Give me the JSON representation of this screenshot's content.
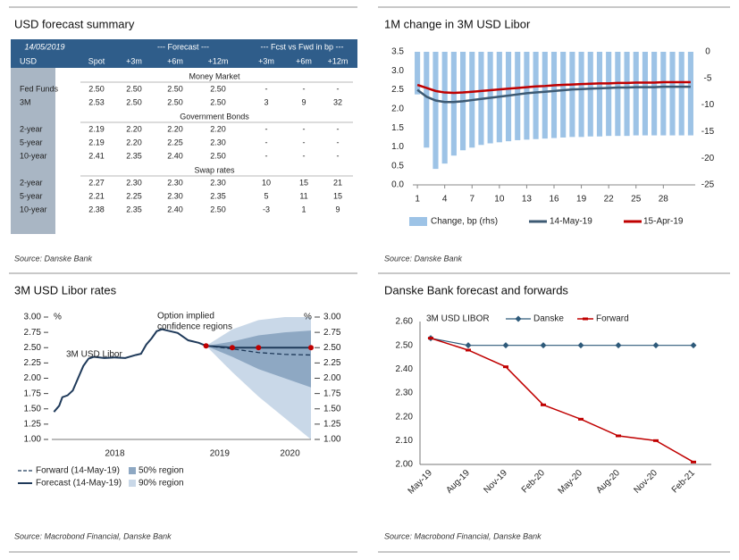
{
  "table": {
    "title": "USD forecast summary",
    "date": "14/05/2019",
    "group_headers": [
      "--- Forecast ---",
      "--- Fcst vs Fwd in bp ---"
    ],
    "columns": [
      "USD",
      "Spot",
      "+3m",
      "+6m",
      "+12m",
      "+3m",
      "+6m",
      "+12m"
    ],
    "sections": [
      {
        "name": "Money Market",
        "rows": [
          [
            "Fed Funds",
            "2.50",
            "2.50",
            "2.50",
            "2.50",
            "-",
            "-",
            "-"
          ],
          [
            "3M",
            "2.53",
            "2.50",
            "2.50",
            "2.50",
            "3",
            "9",
            "32"
          ]
        ]
      },
      {
        "name": "Government Bonds",
        "rows": [
          [
            "2-year",
            "2.19",
            "2.20",
            "2.20",
            "2.20",
            "-",
            "-",
            "-"
          ],
          [
            "5-year",
            "2.19",
            "2.20",
            "2.25",
            "2.30",
            "-",
            "-",
            "-"
          ],
          [
            "10-year",
            "2.41",
            "2.35",
            "2.40",
            "2.50",
            "-",
            "-",
            "-"
          ]
        ]
      },
      {
        "name": "Swap rates",
        "rows": [
          [
            "2-year",
            "2.27",
            "2.30",
            "2.30",
            "2.30",
            "10",
            "15",
            "21"
          ],
          [
            "5-year",
            "2.21",
            "2.25",
            "2.30",
            "2.35",
            "5",
            "11",
            "15"
          ],
          [
            "10-year",
            "2.38",
            "2.35",
            "2.40",
            "2.50",
            "-3",
            "1",
            "9"
          ]
        ]
      }
    ],
    "source": "Source: Danske Bank"
  },
  "chart_data": [
    {
      "type": "combo",
      "title": "1M change in 3M USD Libor",
      "source": "Source: Danske Bank",
      "x": [
        1,
        2,
        3,
        4,
        5,
        6,
        7,
        8,
        9,
        10,
        11,
        12,
        13,
        14,
        15,
        16,
        17,
        18,
        19,
        20,
        21,
        22,
        23,
        24,
        25,
        26,
        27,
        28,
        29,
        30,
        31
      ],
      "series": [
        {
          "name": "Change, bp (rhs)",
          "type": "bar",
          "axis": "y2",
          "color": "#9dc3e6",
          "values": [
            -8,
            -18,
            -22,
            -21,
            -19.5,
            -18.5,
            -18,
            -17.5,
            -17.2,
            -17,
            -16.8,
            -16.6,
            -16.5,
            -16.4,
            -16.3,
            -16.2,
            -16.1,
            -16,
            -16,
            -15.9,
            -15.9,
            -15.8,
            -15.8,
            -15.8,
            -15.7,
            -15.7,
            -15.7,
            -15.7,
            -15.7,
            -15.7,
            -15.7
          ]
        },
        {
          "name": "14-May-19",
          "type": "line",
          "color": "#3d5a73",
          "values": [
            2.5,
            2.32,
            2.22,
            2.18,
            2.18,
            2.2,
            2.23,
            2.26,
            2.29,
            2.32,
            2.35,
            2.38,
            2.41,
            2.43,
            2.45,
            2.47,
            2.49,
            2.51,
            2.52,
            2.53,
            2.54,
            2.55,
            2.56,
            2.56,
            2.57,
            2.57,
            2.57,
            2.58,
            2.58,
            2.58,
            2.58
          ]
        },
        {
          "name": "15-Apr-19",
          "type": "line",
          "color": "#c00000",
          "values": [
            2.63,
            2.55,
            2.47,
            2.43,
            2.42,
            2.43,
            2.45,
            2.47,
            2.49,
            2.51,
            2.53,
            2.55,
            2.57,
            2.59,
            2.6,
            2.62,
            2.63,
            2.64,
            2.65,
            2.66,
            2.67,
            2.67,
            2.68,
            2.68,
            2.69,
            2.69,
            2.69,
            2.7,
            2.7,
            2.7,
            2.7
          ]
        }
      ],
      "xlim": [
        0.5,
        31.5
      ],
      "xticks": [
        1,
        4,
        7,
        10,
        13,
        16,
        19,
        22,
        25,
        28
      ],
      "ylim": [
        0,
        3.5
      ],
      "yticks": [
        {
          "value": 0,
          "label": "0.0"
        },
        {
          "value": 0.5,
          "label": "0.5"
        },
        {
          "value": 1,
          "label": "1.0"
        },
        {
          "value": 1.5,
          "label": "1.5"
        },
        {
          "value": 2,
          "label": "2.0"
        },
        {
          "value": 2.5,
          "label": "2.5"
        },
        {
          "value": 3,
          "label": "3.0"
        },
        {
          "value": 3.5,
          "label": "3.5"
        }
      ],
      "y2lim": [
        -25,
        0
      ],
      "y2ticks": [
        0,
        -5,
        -10,
        -15,
        -20,
        -25
      ]
    },
    {
      "type": "fan",
      "title": "3M USD Libor rates",
      "source": "Source: Macrobond Financial, Danske Bank",
      "y_unit": "%",
      "annotations": [
        "3M USD Libor",
        "Option implied",
        "confidence regions"
      ],
      "bands": [
        {
          "name": "90% region",
          "color": "#c9d8e8",
          "x": [
            2019.37,
            2019.62,
            2019.87,
            2020.12,
            2020.37
          ],
          "lower": [
            2.53,
            2.1,
            1.7,
            1.35,
            1.0
          ],
          "upper": [
            2.53,
            2.8,
            2.95,
            3.0,
            3.0
          ]
        },
        {
          "name": "50% region",
          "color": "#8ea8c3",
          "x": [
            2019.37,
            2019.62,
            2019.87,
            2020.12,
            2020.37
          ],
          "lower": [
            2.53,
            2.35,
            2.15,
            2.0,
            1.85
          ],
          "upper": [
            2.53,
            2.6,
            2.7,
            2.75,
            2.78
          ]
        }
      ],
      "series": [
        {
          "name": "Forecast (14-May-19)",
          "color": "#1f3a5a",
          "dash": false,
          "x": [
            2017.92,
            2017.97,
            2018.0,
            2018.05,
            2018.1,
            2018.15,
            2018.2,
            2018.25,
            2018.3,
            2018.4,
            2018.5,
            2018.6,
            2018.7,
            2018.75,
            2018.8,
            2018.85,
            2018.9,
            2018.95,
            2019.0,
            2019.1,
            2019.2,
            2019.3,
            2019.37,
            2019.62,
            2019.87,
            2020.37
          ],
          "values": [
            1.45,
            1.55,
            1.69,
            1.72,
            1.8,
            2.0,
            2.2,
            2.32,
            2.35,
            2.33,
            2.34,
            2.33,
            2.38,
            2.4,
            2.55,
            2.65,
            2.77,
            2.8,
            2.78,
            2.74,
            2.62,
            2.58,
            2.53,
            2.5,
            2.5,
            2.5
          ]
        },
        {
          "name": "Forward (14-May-19)",
          "color": "#1f3a5a",
          "dash": true,
          "x": [
            2019.37,
            2019.62,
            2019.87,
            2020.12,
            2020.37
          ],
          "values": [
            2.53,
            2.48,
            2.42,
            2.39,
            2.38
          ]
        }
      ],
      "points": {
        "color": "#c00000",
        "x": [
          2019.37,
          2019.62,
          2019.87,
          2020.37
        ],
        "values": [
          2.53,
          2.5,
          2.5,
          2.5
        ]
      },
      "xlim": [
        2017.9,
        2020.37
      ],
      "xticks": [
        {
          "value": 2018.5,
          "label": "2018"
        },
        {
          "value": 2019.5,
          "label": "2019"
        },
        {
          "value": 2020.17,
          "label": "2020"
        }
      ],
      "ylim": [
        1,
        3
      ],
      "yticks": [
        {
          "value": 1,
          "label": "1.00"
        },
        {
          "value": 1.25,
          "label": "1.25"
        },
        {
          "value": 1.5,
          "label": "1.50"
        },
        {
          "value": 1.75,
          "label": "1.75"
        },
        {
          "value": 2,
          "label": "2.00"
        },
        {
          "value": 2.25,
          "label": "2.25"
        },
        {
          "value": 2.5,
          "label": "2.50"
        },
        {
          "value": 2.75,
          "label": "2.75"
        },
        {
          "value": 3,
          "label": "3.00"
        }
      ]
    },
    {
      "type": "line",
      "title": "Danske Bank forecast and forwards",
      "source": "Source: Macrobond Financial, Danske Bank",
      "annotation": "3M USD LIBOR",
      "categories": [
        "May-19",
        "Aug-19",
        "Nov-19",
        "Feb-20",
        "May-20",
        "Aug-20",
        "Nov-20",
        "Feb-21"
      ],
      "series": [
        {
          "name": "Danske",
          "color": "#2e5a7a",
          "values": [
            2.53,
            2.5,
            2.5,
            2.5,
            2.5,
            2.5,
            2.5,
            2.5
          ]
        },
        {
          "name": "Forward",
          "color": "#c00000",
          "values": [
            2.53,
            2.48,
            2.41,
            2.25,
            2.19,
            2.12,
            2.1,
            2.01
          ]
        }
      ],
      "ylim": [
        2,
        2.6
      ],
      "yticks": [
        {
          "value": 2,
          "label": "2.00"
        },
        {
          "value": 2.1,
          "label": "2.10"
        },
        {
          "value": 2.2,
          "label": "2.20"
        },
        {
          "value": 2.3,
          "label": "2.30"
        },
        {
          "value": 2.4,
          "label": "2.40"
        },
        {
          "value": 2.5,
          "label": "2.50"
        },
        {
          "value": 2.6,
          "label": "2.60"
        }
      ]
    }
  ]
}
